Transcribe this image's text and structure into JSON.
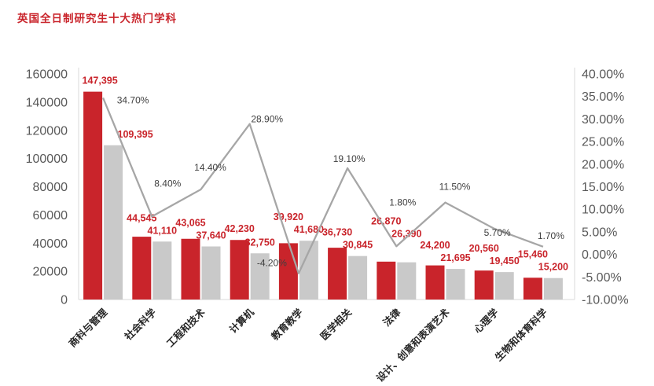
{
  "title": "英国全日制研究生十大热门学科",
  "colors": {
    "bar_red": "#c9242b",
    "bar_gray": "#c9c9c9",
    "line_gray": "#a6a6a6",
    "value_label": "#c9242b",
    "percent_label": "#3f3f3f",
    "axis_text": "#595959",
    "axis_line": "#d9d9d9",
    "category_text": "#262626",
    "title_color": "#c9242b"
  },
  "chart_data": {
    "type": "bar+line",
    "title": "英国全日制研究生十大热门学科",
    "legend": "none",
    "grid": false,
    "categories": [
      "商科与管理",
      "社会科学",
      "工程和技术",
      "计算机",
      "教育教学",
      "医学相关",
      "法律",
      "设计、创意和表演艺术",
      "心理学",
      "生物和体育科学"
    ],
    "series": [
      {
        "name": "bar-red",
        "type": "bar",
        "axis": "left",
        "values": [
          147395,
          44545,
          43065,
          42230,
          39920,
          36730,
          26870,
          24200,
          20560,
          15460
        ],
        "labels": [
          "147,395",
          "44,545",
          "43,065",
          "42,230",
          "39,920",
          "36,730",
          "26,870",
          "24,200",
          "20,560",
          "15,460"
        ]
      },
      {
        "name": "bar-gray",
        "type": "bar",
        "axis": "left",
        "values": [
          109395,
          41110,
          37640,
          32750,
          41680,
          30845,
          26390,
          21695,
          19450,
          15200
        ],
        "labels": [
          "109,395",
          "41,110",
          "37,640",
          "32,750",
          "41,680",
          "30,845",
          "26,390",
          "21,695",
          "19,450",
          "15,200"
        ]
      },
      {
        "name": "line-percent",
        "type": "line",
        "axis": "right",
        "values": [
          34.7,
          8.4,
          14.4,
          28.9,
          -4.2,
          19.1,
          1.8,
          11.5,
          5.7,
          1.7
        ],
        "labels": [
          "34.70%",
          "8.40%",
          "14.40%",
          "28.90%",
          "-4.20%",
          "19.10%",
          "1.80%",
          "11.50%",
          "5.70%",
          "1.70%"
        ]
      }
    ],
    "left_axis": {
      "min": 0,
      "max": 160000,
      "step": 20000,
      "tick_labels": [
        "0",
        "20000",
        "40000",
        "60000",
        "80000",
        "100000",
        "120000",
        "140000",
        "160000"
      ]
    },
    "right_axis": {
      "min": -10,
      "max": 40,
      "step": 5,
      "tick_labels": [
        "-10.00%",
        "-5.00%",
        "0.00%",
        "5.00%",
        "10.00%",
        "15.00%",
        "20.00%",
        "25.00%",
        "30.00%",
        "35.00%",
        "40.00%"
      ]
    }
  }
}
